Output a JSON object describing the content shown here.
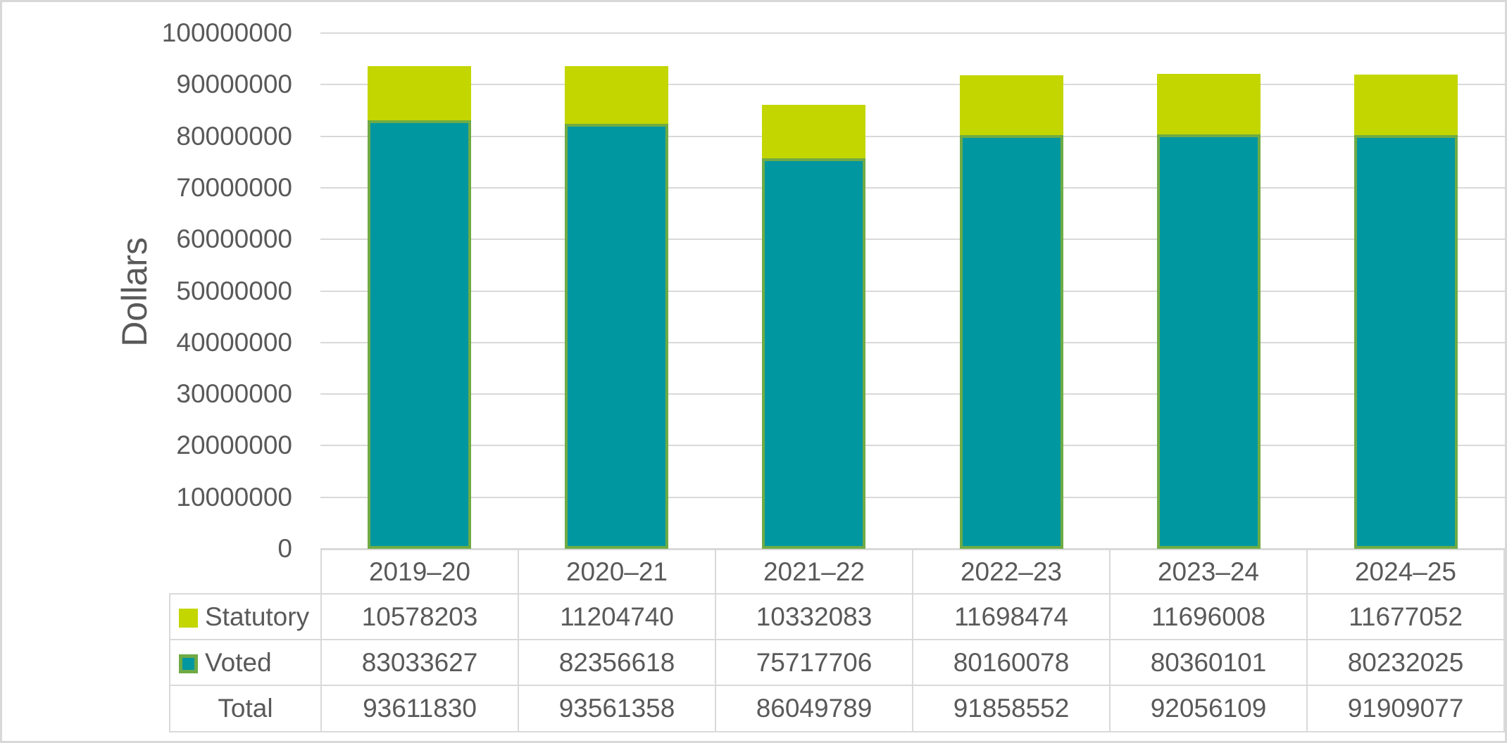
{
  "chart_data": {
    "type": "bar",
    "stacked": true,
    "ylabel": "Dollars",
    "ylim": [
      0,
      100000000
    ],
    "ytick_step": 10000000,
    "ytick_labels": [
      "0",
      "10000000",
      "20000000",
      "30000000",
      "40000000",
      "50000000",
      "60000000",
      "70000000",
      "80000000",
      "90000000",
      "100000000"
    ],
    "grid": true,
    "legend_position": "embedded in data table left column",
    "categories": [
      "2019–20",
      "2020–21",
      "2021–22",
      "2022–23",
      "2023–24",
      "2024–25"
    ],
    "series": [
      {
        "name": "Statutory",
        "color": "#c3d600",
        "key_border": null,
        "bar_border": null,
        "values": [
          10578203,
          11204740,
          10332083,
          11698474,
          11696008,
          11677052
        ]
      },
      {
        "name": "Voted",
        "color": "#0097a0",
        "key_border": "#6fab45",
        "bar_border": "#6fab45",
        "values": [
          83033627,
          82356618,
          75717706,
          80160078,
          80360101,
          80232025
        ]
      }
    ],
    "stack_bottom_to_top": [
      "Voted",
      "Statutory"
    ],
    "total": {
      "label": "Total",
      "values": [
        93611830,
        93561358,
        86049789,
        91858552,
        92056109,
        91909077
      ]
    },
    "corner_cell": ""
  },
  "colors": {
    "statutory": "#c3d600",
    "voted": "#0097a0",
    "voted_border": "#6fab45",
    "gridline": "#d9d9d9",
    "text": "#595959",
    "frame_border": "#d8d8d8",
    "background": "#ffffff"
  }
}
